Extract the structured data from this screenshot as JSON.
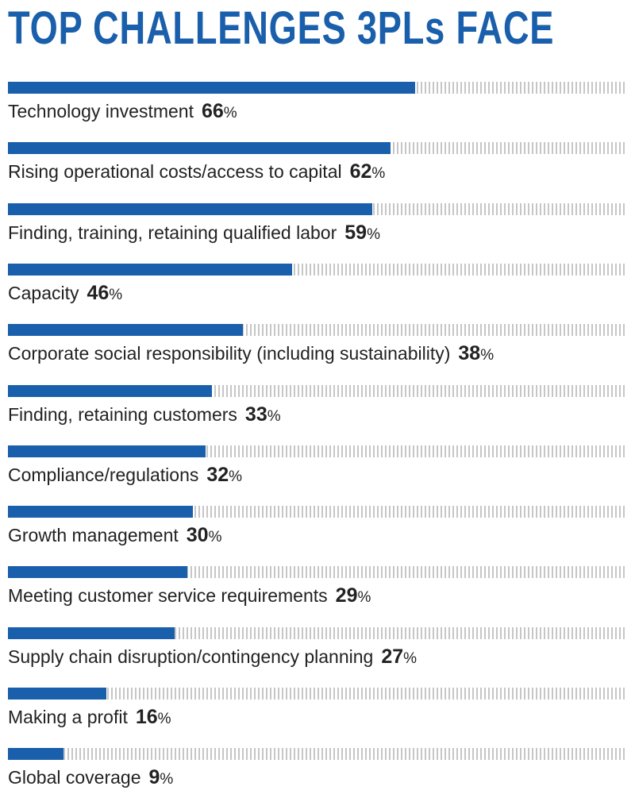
{
  "chart_data": {
    "type": "bar",
    "orientation": "horizontal",
    "title": "TOP CHALLENGES 3PLs FACE",
    "unit": "%",
    "xlim": [
      0,
      100
    ],
    "categories": [
      "Technology investment",
      "Rising operational costs/access to capital",
      "Finding, training, retaining qualified labor",
      "Capacity",
      "Corporate social responsibility (including sustainability)",
      "Finding, retaining customers",
      "Compliance/regulations",
      "Growth management",
      "Meeting customer service requirements",
      "Supply chain disruption/contingency planning",
      "Making a profit",
      "Global coverage"
    ],
    "values": [
      66,
      62,
      59,
      46,
      38,
      33,
      32,
      30,
      29,
      27,
      16,
      9
    ]
  },
  "colors": {
    "bar": "#1a5fab",
    "track": "#c6c6c6",
    "title": "#1a5fab"
  }
}
